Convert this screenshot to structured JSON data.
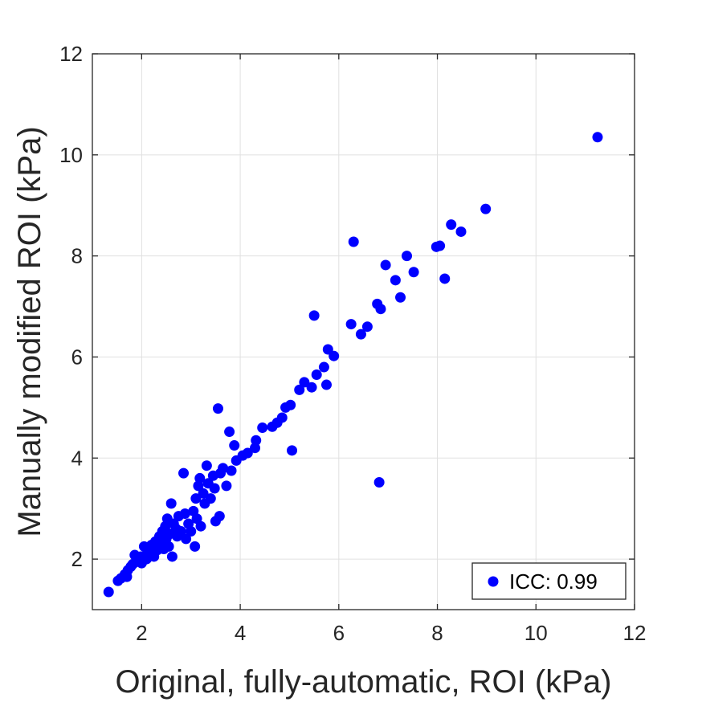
{
  "chart_data": {
    "type": "scatter",
    "xlabel": "Original, fully-automatic, ROI (kPa)",
    "ylabel": "Manually modified ROI (kPa)",
    "xlim": [
      1,
      12
    ],
    "ylim": [
      1,
      12
    ],
    "xticks": [
      2,
      4,
      6,
      8,
      10,
      12
    ],
    "yticks": [
      2,
      4,
      6,
      8,
      10,
      12
    ],
    "grid": true,
    "legend_position": "bottom-right",
    "colors": {
      "marker": "#0000ff",
      "grid": "#e0e0e0",
      "axis": "#262626"
    },
    "series": [
      {
        "name": "ICC: 0.99",
        "points": [
          [
            1.33,
            1.35
          ],
          [
            1.52,
            1.57
          ],
          [
            1.58,
            1.62
          ],
          [
            1.66,
            1.7
          ],
          [
            1.7,
            1.65
          ],
          [
            1.72,
            1.78
          ],
          [
            1.78,
            1.85
          ],
          [
            1.82,
            1.9
          ],
          [
            1.86,
            2.08
          ],
          [
            1.92,
            1.95
          ],
          [
            1.98,
            2.05
          ],
          [
            2.0,
            1.92
          ],
          [
            2.05,
            2.25
          ],
          [
            2.1,
            2.0
          ],
          [
            2.12,
            2.15
          ],
          [
            2.18,
            2.1
          ],
          [
            2.2,
            2.28
          ],
          [
            2.25,
            2.05
          ],
          [
            2.28,
            2.35
          ],
          [
            2.32,
            2.18
          ],
          [
            2.36,
            2.45
          ],
          [
            2.4,
            2.3
          ],
          [
            2.42,
            2.55
          ],
          [
            2.45,
            2.2
          ],
          [
            2.48,
            2.65
          ],
          [
            2.5,
            2.4
          ],
          [
            2.52,
            2.8
          ],
          [
            2.55,
            2.25
          ],
          [
            2.58,
            2.5
          ],
          [
            2.6,
            3.1
          ],
          [
            2.62,
            2.05
          ],
          [
            2.65,
            2.7
          ],
          [
            2.7,
            2.6
          ],
          [
            2.72,
            2.45
          ],
          [
            2.75,
            2.85
          ],
          [
            2.8,
            2.55
          ],
          [
            2.85,
            3.7
          ],
          [
            2.88,
            2.9
          ],
          [
            2.9,
            2.4
          ],
          [
            2.95,
            2.7
          ],
          [
            3.0,
            2.55
          ],
          [
            3.05,
            2.95
          ],
          [
            3.08,
            2.25
          ],
          [
            3.1,
            3.2
          ],
          [
            3.12,
            2.8
          ],
          [
            3.15,
            3.45
          ],
          [
            3.18,
            3.6
          ],
          [
            3.2,
            2.65
          ],
          [
            3.25,
            3.3
          ],
          [
            3.28,
            3.1
          ],
          [
            3.32,
            3.85
          ],
          [
            3.35,
            3.5
          ],
          [
            3.4,
            3.2
          ],
          [
            3.45,
            3.65
          ],
          [
            3.48,
            3.4
          ],
          [
            3.5,
            2.75
          ],
          [
            3.55,
            4.98
          ],
          [
            3.58,
            2.85
          ],
          [
            3.6,
            3.7
          ],
          [
            3.65,
            3.8
          ],
          [
            3.72,
            3.45
          ],
          [
            3.78,
            4.52
          ],
          [
            3.82,
            3.75
          ],
          [
            3.88,
            4.25
          ],
          [
            3.92,
            3.95
          ],
          [
            4.05,
            4.05
          ],
          [
            4.15,
            4.1
          ],
          [
            4.3,
            4.2
          ],
          [
            4.32,
            4.35
          ],
          [
            4.45,
            4.6
          ],
          [
            4.65,
            4.62
          ],
          [
            4.75,
            4.7
          ],
          [
            4.85,
            4.8
          ],
          [
            4.92,
            5.0
          ],
          [
            5.02,
            5.05
          ],
          [
            5.05,
            4.15
          ],
          [
            5.2,
            5.35
          ],
          [
            5.3,
            5.5
          ],
          [
            5.45,
            5.4
          ],
          [
            5.5,
            6.82
          ],
          [
            5.55,
            5.65
          ],
          [
            5.7,
            5.8
          ],
          [
            5.75,
            5.45
          ],
          [
            5.78,
            6.15
          ],
          [
            5.9,
            6.02
          ],
          [
            6.25,
            6.65
          ],
          [
            6.3,
            8.28
          ],
          [
            6.45,
            6.45
          ],
          [
            6.58,
            6.6
          ],
          [
            6.78,
            7.05
          ],
          [
            6.82,
            3.52
          ],
          [
            6.85,
            6.95
          ],
          [
            6.95,
            7.82
          ],
          [
            7.15,
            7.52
          ],
          [
            7.25,
            7.18
          ],
          [
            7.38,
            8.0
          ],
          [
            7.52,
            7.68
          ],
          [
            7.98,
            8.18
          ],
          [
            8.05,
            8.2
          ],
          [
            8.15,
            7.55
          ],
          [
            8.28,
            8.62
          ],
          [
            8.48,
            8.48
          ],
          [
            8.98,
            8.93
          ],
          [
            11.25,
            10.35
          ]
        ]
      }
    ]
  }
}
